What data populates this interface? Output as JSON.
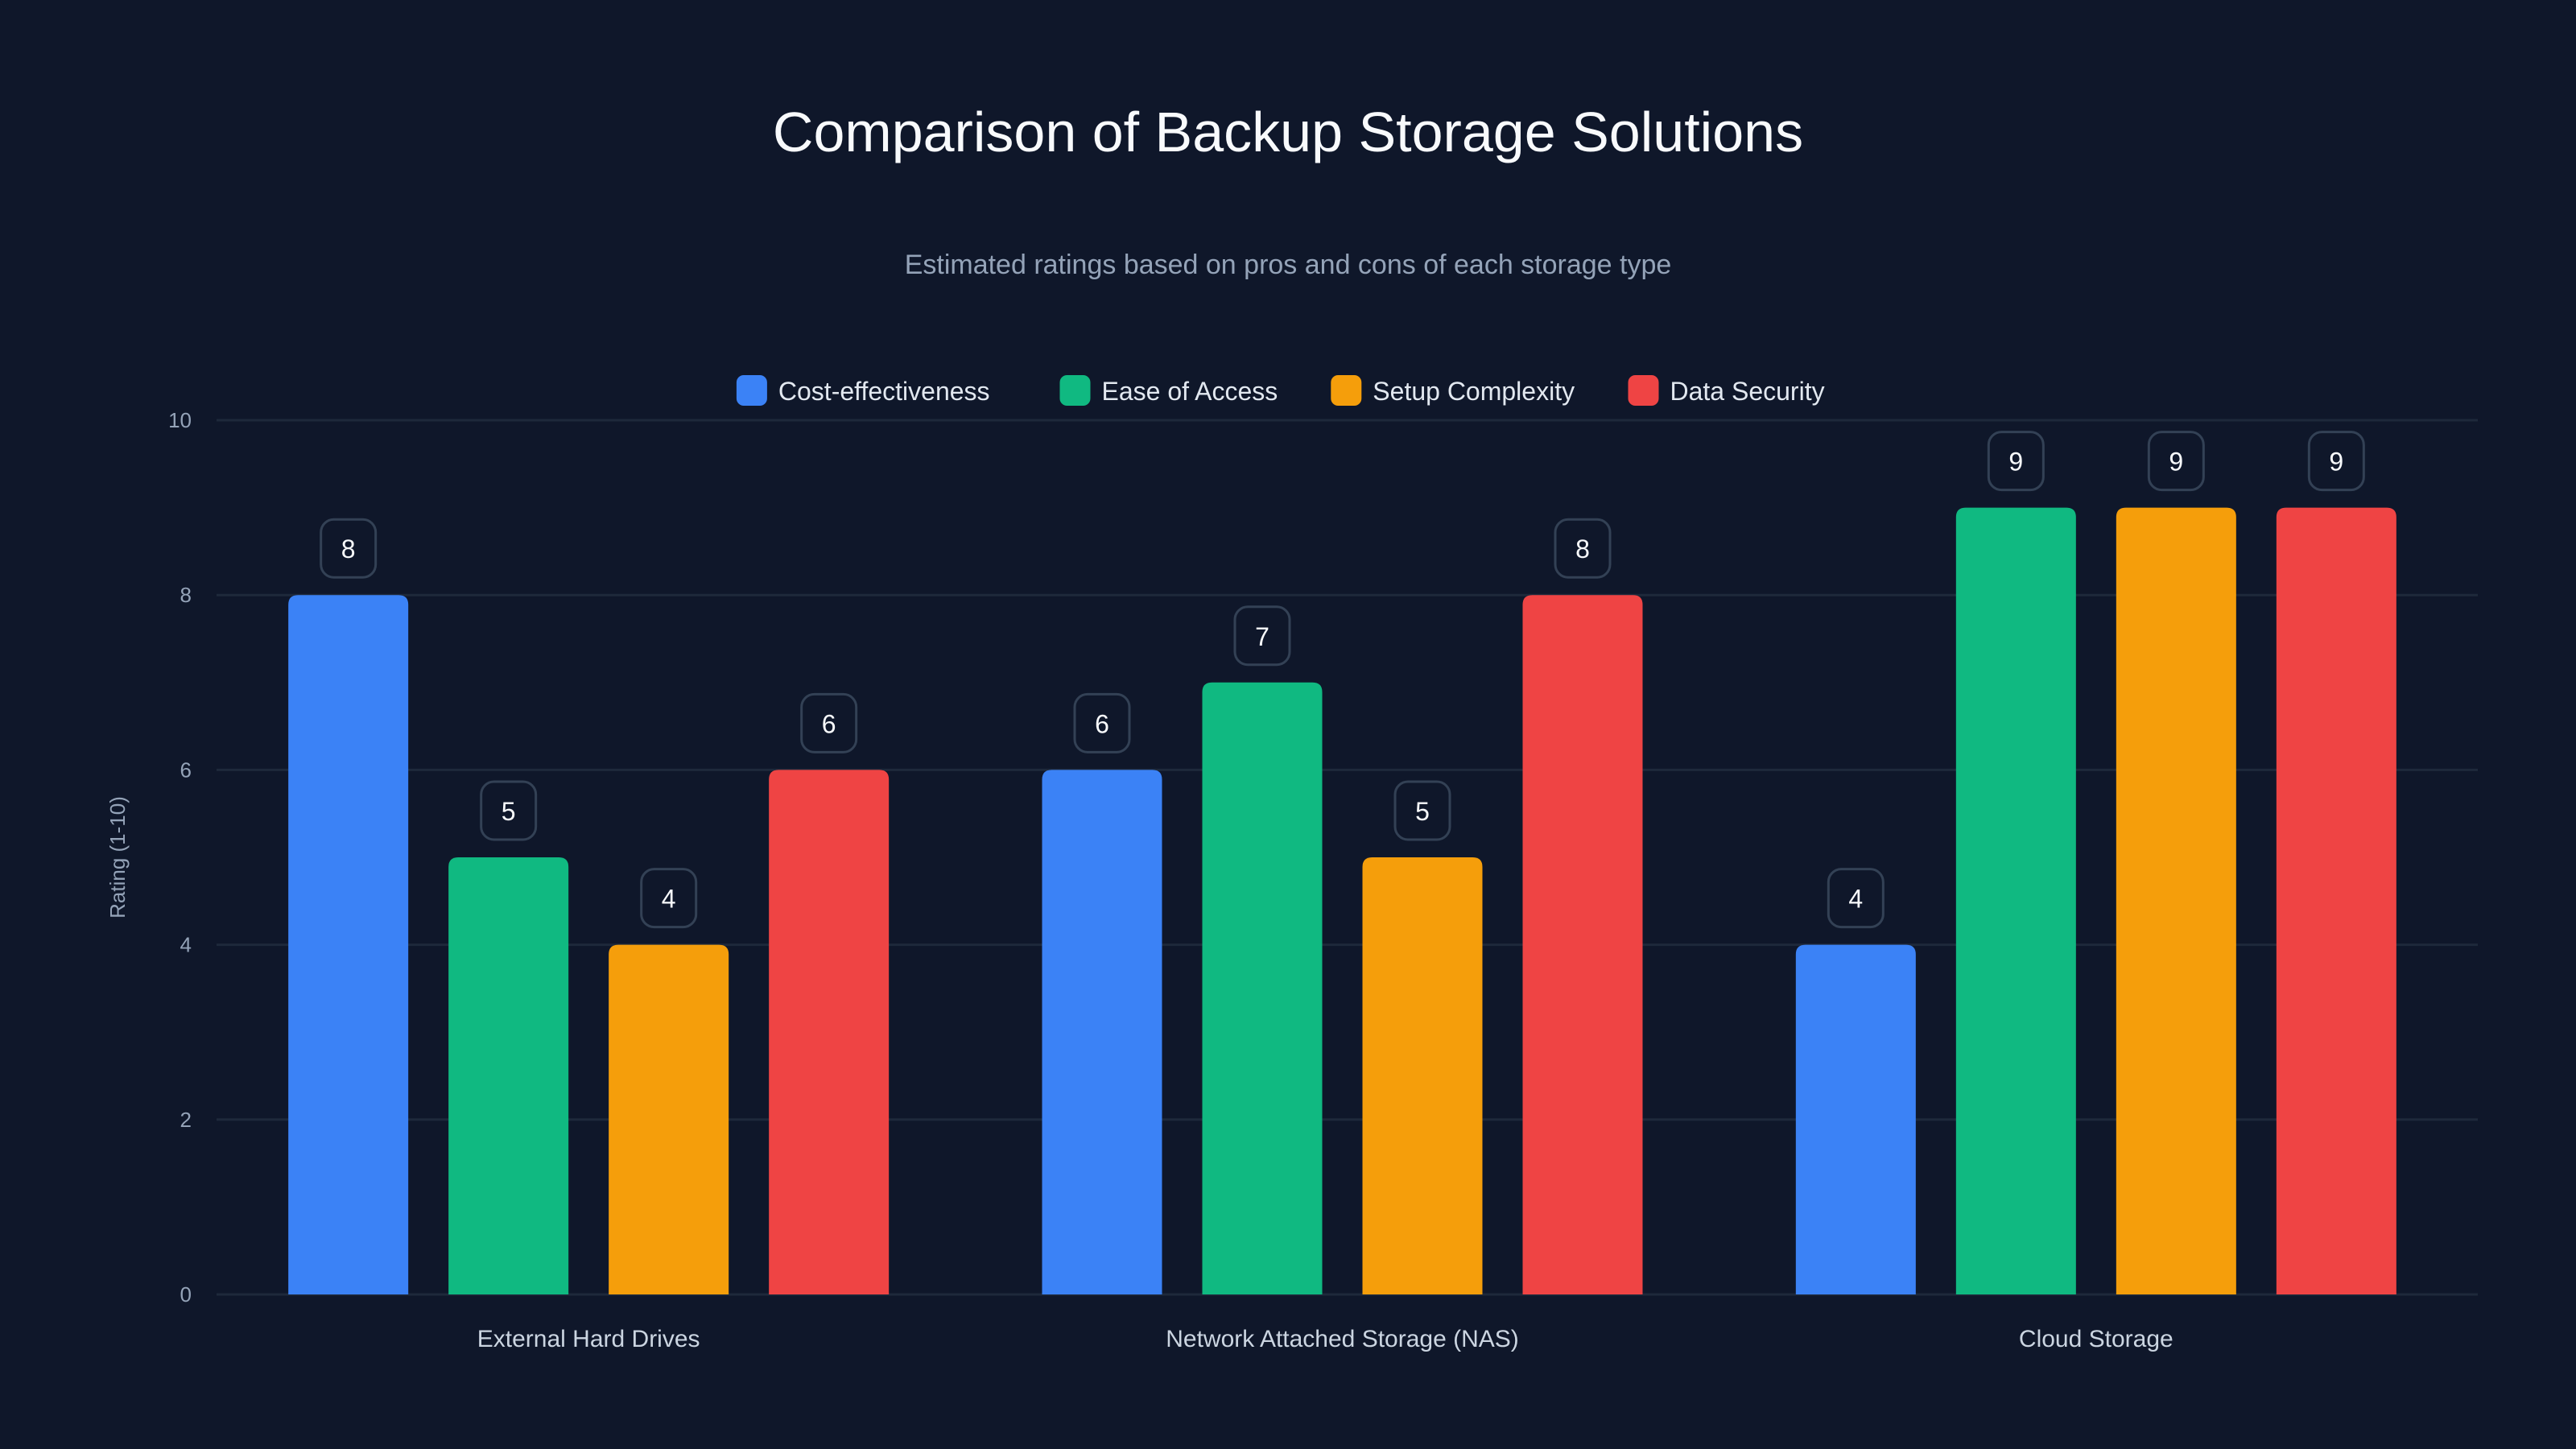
{
  "chart_data": {
    "type": "bar",
    "title": "Comparison of Backup Storage Solutions",
    "subtitle": "Estimated ratings based on pros and cons of each storage type",
    "xlabel": "",
    "ylabel": "Rating (1-10)",
    "ylim": [
      0,
      10
    ],
    "yticks": [
      0,
      2,
      4,
      6,
      8,
      10
    ],
    "grid": true,
    "legend_position": "top-center",
    "categories": [
      "External Hard Drives",
      "Network Attached Storage (NAS)",
      "Cloud Storage"
    ],
    "series": [
      {
        "name": "Cost-effectiveness",
        "color": "#3b82f6",
        "values": [
          8,
          6,
          4
        ]
      },
      {
        "name": "Ease of Access",
        "color": "#10b981",
        "values": [
          5,
          7,
          9
        ]
      },
      {
        "name": "Setup Complexity",
        "color": "#f59e0b",
        "values": [
          4,
          5,
          9
        ]
      },
      {
        "name": "Data Security",
        "color": "#ef4444",
        "values": [
          6,
          8,
          9
        ]
      }
    ]
  }
}
